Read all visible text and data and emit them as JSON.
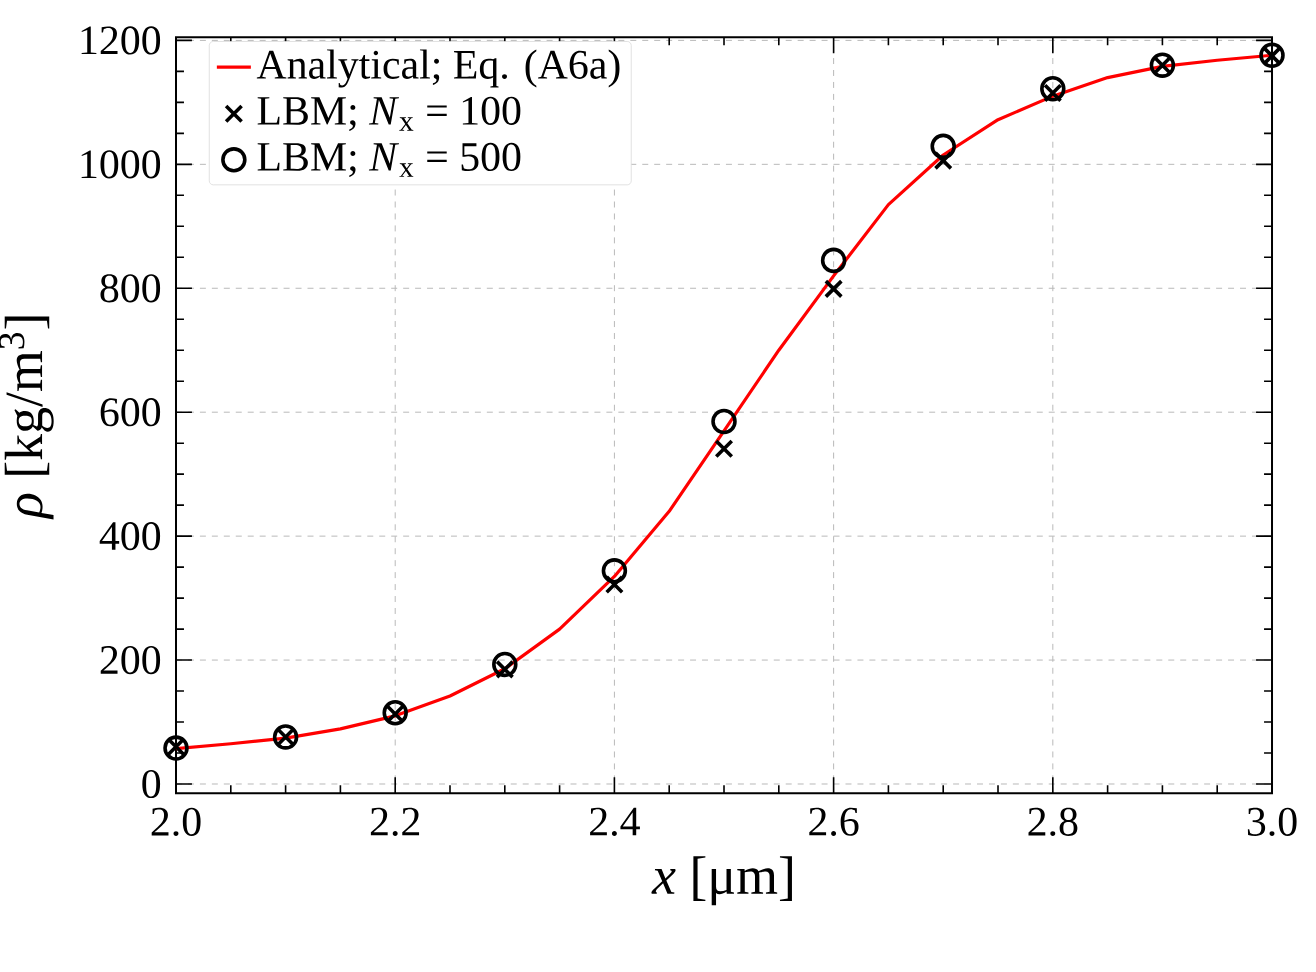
{
  "chart_data": {
    "type": "line",
    "xlabel": "*x* [μm]",
    "ylabel": "*ρ* [kg/m$^{3}$]",
    "xlim": [
      2.0,
      3.0
    ],
    "ylim": [
      -15,
      1205
    ],
    "xticks": [
      {
        "value": 2.0,
        "label": "2.0"
      },
      2.2,
      2.4,
      2.6,
      2.8,
      {
        "value": 3.0,
        "label": "3.0"
      }
    ],
    "yticks": [
      0,
      200,
      400,
      600,
      800,
      1000,
      1200
    ],
    "grid": true,
    "legend": "top left",
    "series": [
      {
        "name": "Analytical; Eq. (A6a)",
        "color": "#ff0000",
        "marker": "none",
        "line_style": "solid",
        "x": [
          2.0,
          2.05,
          2.1,
          2.15,
          2.2,
          2.25,
          2.3,
          2.35,
          2.4,
          2.45,
          2.5,
          2.55,
          2.6,
          2.65,
          2.7,
          2.75,
          2.8,
          2.85,
          2.9,
          2.95,
          3.0
        ],
        "values": [
          57,
          65,
          74,
          89,
          110,
          142,
          186,
          250,
          335,
          440,
          570,
          700,
          820,
          935,
          1015,
          1072,
          1110,
          1140,
          1158,
          1168,
          1176
        ]
      },
      {
        "name": "LBM; *N*$_{x}$ = 100",
        "type": "scatter",
        "color": "#000000",
        "marker": "cross",
        "x": [
          2.0,
          2.1,
          2.2,
          2.3,
          2.4,
          2.5,
          2.6,
          2.7,
          2.8,
          2.9,
          3.0
        ],
        "values": [
          60,
          76,
          113,
          185,
          322,
          541,
          799,
          1006,
          1115,
          1160,
          1175
        ]
      },
      {
        "name": "LBM; *N*$_{x}$ = 500",
        "type": "scatter",
        "color": "#000000",
        "marker": "circle",
        "x": [
          2.0,
          2.1,
          2.2,
          2.3,
          2.4,
          2.5,
          2.6,
          2.7,
          2.8,
          2.9,
          3.0
        ],
        "values": [
          58,
          76,
          115,
          193,
          344,
          585,
          845,
          1029,
          1122,
          1160,
          1176
        ]
      }
    ]
  }
}
